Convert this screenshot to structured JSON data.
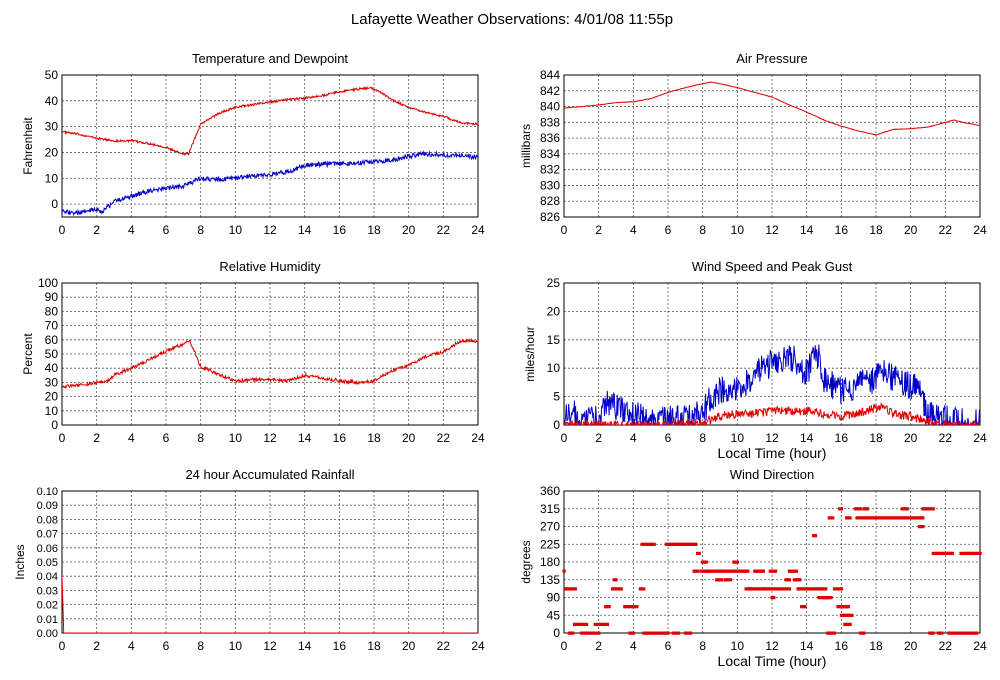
{
  "page_title": "Lafayette Weather Observations: 4/01/08 11:55p",
  "colors": {
    "red": "#e00000",
    "blue": "#0000c8",
    "grid": "#555555"
  },
  "chart_data": [
    {
      "id": "temp",
      "type": "line",
      "title": "Temperature and Dewpoint",
      "ylabel": "Fahrenheit",
      "xlabel": "",
      "xlim": [
        0,
        24
      ],
      "ylim": [
        -5,
        50
      ],
      "yticks": [
        0,
        10,
        20,
        30,
        40,
        50
      ],
      "xticks": [
        0,
        2,
        4,
        6,
        8,
        10,
        12,
        14,
        16,
        18,
        20,
        22,
        24
      ],
      "grid": true,
      "series": [
        {
          "color": "#e00000",
          "noise": 0.4,
          "x": [
            0,
            1,
            2,
            3,
            4,
            5,
            6,
            6.5,
            7,
            7.3,
            8,
            9,
            10,
            11,
            12,
            13,
            14,
            15,
            16,
            17,
            17.8,
            18.5,
            19,
            20,
            21,
            22,
            23,
            24
          ],
          "y": [
            28,
            27,
            25.5,
            24.5,
            24.5,
            23.5,
            22,
            20.5,
            19.5,
            19.5,
            31,
            35,
            37.5,
            38.5,
            39.5,
            40.5,
            41,
            42,
            43.5,
            44.5,
            45,
            43,
            40.5,
            37.5,
            35.5,
            34,
            31.5,
            31
          ]
        },
        {
          "color": "#0000c8",
          "noise": 0.9,
          "x": [
            0,
            1,
            2,
            2.3,
            3,
            4,
            5,
            6,
            7,
            8,
            9,
            10,
            11,
            12,
            13,
            14,
            15,
            16,
            17,
            18,
            19,
            20,
            21,
            22,
            23,
            24
          ],
          "y": [
            -3,
            -3.5,
            -2,
            -3,
            1,
            3,
            5,
            6,
            7,
            10,
            9.5,
            10,
            11,
            11.5,
            12.5,
            15,
            15.5,
            15.5,
            16,
            16.5,
            17,
            18.5,
            19.5,
            19,
            19,
            18
          ]
        }
      ]
    },
    {
      "id": "pressure",
      "type": "line",
      "title": "Air Pressure",
      "ylabel": "millibars",
      "xlabel": "",
      "xlim": [
        0,
        24
      ],
      "ylim": [
        826,
        844
      ],
      "yticks": [
        826,
        828,
        830,
        832,
        834,
        836,
        838,
        840,
        842,
        844
      ],
      "xticks": [
        0,
        2,
        4,
        6,
        8,
        10,
        12,
        14,
        16,
        18,
        20,
        22,
        24
      ],
      "grid": true,
      "series": [
        {
          "color": "#e00000",
          "noise": 0.03,
          "x": [
            0,
            1,
            2,
            3,
            4,
            5,
            6,
            7,
            8,
            8.5,
            9,
            10,
            11,
            12,
            13,
            14,
            15,
            16,
            17,
            18,
            19,
            20,
            21,
            22,
            22.5,
            23,
            24
          ],
          "y": [
            839.8,
            840,
            840.2,
            840.5,
            840.6,
            841,
            841.8,
            842.4,
            842.9,
            843.1,
            842.9,
            842.4,
            841.8,
            841.2,
            840.2,
            839.3,
            838.3,
            837.5,
            836.9,
            836.4,
            837.1,
            837.2,
            837.4,
            838,
            838.3,
            838,
            837.6
          ]
        }
      ]
    },
    {
      "id": "humidity",
      "type": "line",
      "title": "Relative Humidity",
      "ylabel": "Percent",
      "xlabel": "",
      "xlim": [
        0,
        24
      ],
      "ylim": [
        0,
        100
      ],
      "yticks": [
        0,
        10,
        20,
        30,
        40,
        50,
        60,
        70,
        80,
        90,
        100
      ],
      "xticks": [
        0,
        2,
        4,
        6,
        8,
        10,
        12,
        14,
        16,
        18,
        20,
        22,
        24
      ],
      "grid": true,
      "series": [
        {
          "color": "#e00000",
          "noise": 1.2,
          "x": [
            0,
            1,
            2,
            2.5,
            3,
            4,
            5,
            6,
            7,
            7.4,
            8,
            9,
            10,
            11,
            12,
            13,
            14,
            15,
            16,
            17,
            18,
            19,
            20,
            21,
            22,
            23,
            24
          ],
          "y": [
            27,
            28,
            30,
            30,
            35,
            40,
            46,
            52,
            57,
            59,
            41,
            36,
            31,
            32,
            32,
            31,
            35,
            33,
            31,
            30,
            31,
            38,
            42,
            48,
            52,
            59,
            59
          ]
        }
      ]
    },
    {
      "id": "wind",
      "type": "line",
      "title": "Wind Speed and Peak Gust",
      "ylabel": "miles/hour",
      "xlabel": "Local Time (hour)",
      "xlim": [
        0,
        24
      ],
      "ylim": [
        0,
        25
      ],
      "yticks": [
        0,
        5,
        10,
        15,
        20,
        25
      ],
      "xticks": [
        0,
        2,
        4,
        6,
        8,
        10,
        12,
        14,
        16,
        18,
        20,
        22,
        24
      ],
      "grid": true,
      "series": [
        {
          "color": "#0000c8",
          "noise": 2.5,
          "x": [
            0,
            0.3,
            1,
            2,
            2.6,
            3,
            4,
            5,
            6,
            7,
            8,
            8.5,
            9,
            10,
            11,
            12,
            13,
            13.5,
            14,
            14.6,
            15,
            16,
            17,
            18,
            18.4,
            19,
            20,
            20.5,
            21,
            22,
            23,
            24
          ],
          "y": [
            0.5,
            3,
            0.5,
            1,
            4,
            3,
            2,
            0.5,
            1,
            1,
            2,
            5,
            6,
            6,
            9,
            11,
            12,
            11,
            9,
            13,
            8,
            6,
            7,
            8,
            10,
            8,
            7,
            6,
            2,
            1,
            0.5,
            0.5
          ]
        },
        {
          "color": "#e00000",
          "noise": 0.8,
          "x": [
            0,
            2,
            4,
            6,
            8,
            9,
            10,
            11,
            12,
            13,
            14,
            15,
            16,
            17,
            18,
            18.4,
            19,
            20,
            21,
            22,
            24
          ],
          "y": [
            0,
            0,
            0,
            0,
            0.5,
            1.5,
            2,
            2,
            2.5,
            2.5,
            2.5,
            2,
            1.5,
            2,
            3,
            3.5,
            2,
            1.5,
            0.5,
            0,
            0
          ]
        }
      ]
    },
    {
      "id": "rain",
      "type": "line",
      "title": "24 hour Accumulated Rainfall",
      "ylabel": "Inches",
      "xlabel": "",
      "xlim": [
        0,
        24
      ],
      "ylim": [
        0,
        0.1
      ],
      "yticks": [
        0.0,
        0.01,
        0.02,
        0.03,
        0.04,
        0.05,
        0.06,
        0.07,
        0.08,
        0.09,
        0.1
      ],
      "ytick_labels": [
        "0.00",
        "0.01",
        "0.02",
        "0.03",
        "0.04",
        "0.05",
        "0.06",
        "0.07",
        "0.08",
        "0.09",
        "0.10"
      ],
      "xticks": [
        0,
        2,
        4,
        6,
        8,
        10,
        12,
        14,
        16,
        18,
        20,
        22,
        24
      ],
      "grid": true,
      "series": [
        {
          "color": "#e00000",
          "noise": 0,
          "x": [
            0,
            0.05,
            0.1,
            24
          ],
          "y": [
            0.04,
            0.02,
            0,
            0
          ]
        }
      ]
    },
    {
      "id": "winddir",
      "type": "scatter",
      "title": "Wind Direction",
      "ylabel": "degrees",
      "xlabel": "Local Time (hour)",
      "xlim": [
        0,
        24
      ],
      "ylim": [
        0,
        360
      ],
      "yticks": [
        0,
        45,
        90,
        135,
        180,
        225,
        270,
        315,
        360
      ],
      "xticks": [
        0,
        2,
        4,
        6,
        8,
        10,
        12,
        14,
        16,
        18,
        20,
        22,
        24
      ],
      "grid": true,
      "color": "#e00000",
      "segments": [
        [
          0.0,
          0.05,
          157
        ],
        [
          0.05,
          0.7,
          112
        ],
        [
          0.3,
          0.5,
          0
        ],
        [
          0.6,
          1.3,
          22
        ],
        [
          1.0,
          2.0,
          0
        ],
        [
          1.8,
          2.5,
          22
        ],
        [
          2.4,
          2.6,
          67
        ],
        [
          2.8,
          3.3,
          112
        ],
        [
          2.9,
          3.0,
          135
        ],
        [
          3.5,
          4.2,
          67
        ],
        [
          3.8,
          4.0,
          0
        ],
        [
          4.4,
          4.6,
          112
        ],
        [
          4.5,
          5.2,
          225
        ],
        [
          4.6,
          6.0,
          0
        ],
        [
          5.9,
          7.6,
          225
        ],
        [
          6.3,
          6.6,
          0
        ],
        [
          7.0,
          7.3,
          0
        ],
        [
          7.5,
          7.7,
          157
        ],
        [
          7.7,
          7.8,
          202
        ],
        [
          7.9,
          8.4,
          157
        ],
        [
          8.0,
          8.2,
          180
        ],
        [
          8.2,
          10.6,
          157
        ],
        [
          8.8,
          9.1,
          135
        ],
        [
          9.3,
          9.6,
          135
        ],
        [
          9.8,
          10.0,
          180
        ],
        [
          10.5,
          10.8,
          112
        ],
        [
          10.6,
          11.5,
          112
        ],
        [
          11.0,
          11.5,
          157
        ],
        [
          11.5,
          13.0,
          112
        ],
        [
          11.9,
          12.2,
          157
        ],
        [
          12.0,
          12.1,
          90
        ],
        [
          12.8,
          13.0,
          135
        ],
        [
          13.0,
          13.4,
          157
        ],
        [
          13.3,
          13.6,
          135
        ],
        [
          13.5,
          14.8,
          112
        ],
        [
          13.7,
          13.9,
          67
        ],
        [
          14.4,
          14.5,
          247
        ],
        [
          14.7,
          15.2,
          90
        ],
        [
          14.8,
          15.1,
          112
        ],
        [
          15.0,
          15.4,
          90
        ],
        [
          15.2,
          15.6,
          0
        ],
        [
          15.6,
          16.0,
          112
        ],
        [
          15.8,
          16.3,
          67
        ],
        [
          15.9,
          16.0,
          315
        ],
        [
          16.0,
          16.6,
          45
        ],
        [
          16.1,
          16.4,
          67
        ],
        [
          16.2,
          16.5,
          22
        ],
        [
          15.3,
          15.5,
          292
        ],
        [
          16.3,
          16.5,
          292
        ],
        [
          16.8,
          17.1,
          315
        ],
        [
          17.1,
          17.3,
          0
        ],
        [
          17.3,
          17.5,
          315
        ],
        [
          16.9,
          20.7,
          292
        ],
        [
          19.5,
          19.8,
          315
        ],
        [
          20.5,
          20.7,
          270
        ],
        [
          20.7,
          21.3,
          315
        ],
        [
          21.1,
          21.3,
          0
        ],
        [
          21.3,
          22.4,
          202
        ],
        [
          21.6,
          21.8,
          0
        ],
        [
          22.2,
          23.8,
          0
        ],
        [
          22.9,
          24.0,
          202
        ]
      ]
    }
  ]
}
